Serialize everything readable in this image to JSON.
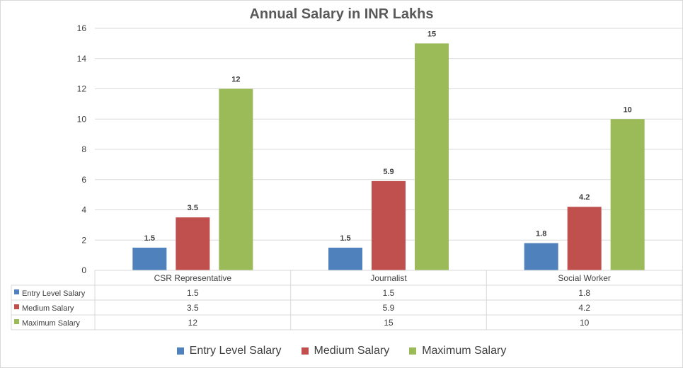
{
  "chart_data": {
    "type": "bar",
    "title": "Annual Salary in INR Lakhs",
    "categories": [
      "CSR Representative",
      "Journalist",
      "Social Worker"
    ],
    "series": [
      {
        "name": "Entry Level Salary",
        "values": [
          1.5,
          1.5,
          1.8
        ],
        "labels": [
          "1.5",
          "1.5",
          "1.8"
        ],
        "color": "#4f81bd"
      },
      {
        "name": "Medium Salary",
        "values": [
          3.5,
          5.9,
          4.2
        ],
        "labels": [
          "3.5",
          "5.9",
          "4.2"
        ],
        "color": "#c0504d"
      },
      {
        "name": "Maximum Salary",
        "values": [
          12,
          15,
          10
        ],
        "labels": [
          "12",
          "15",
          "10"
        ],
        "color": "#9bbb59"
      }
    ],
    "ylim": [
      0,
      16
    ],
    "yticks": [
      "0",
      "2",
      "4",
      "6",
      "8",
      "10",
      "12",
      "14",
      "16"
    ],
    "xlabel": "",
    "ylabel": "",
    "grid": true,
    "legend_position": "bottom",
    "data_table": true
  }
}
